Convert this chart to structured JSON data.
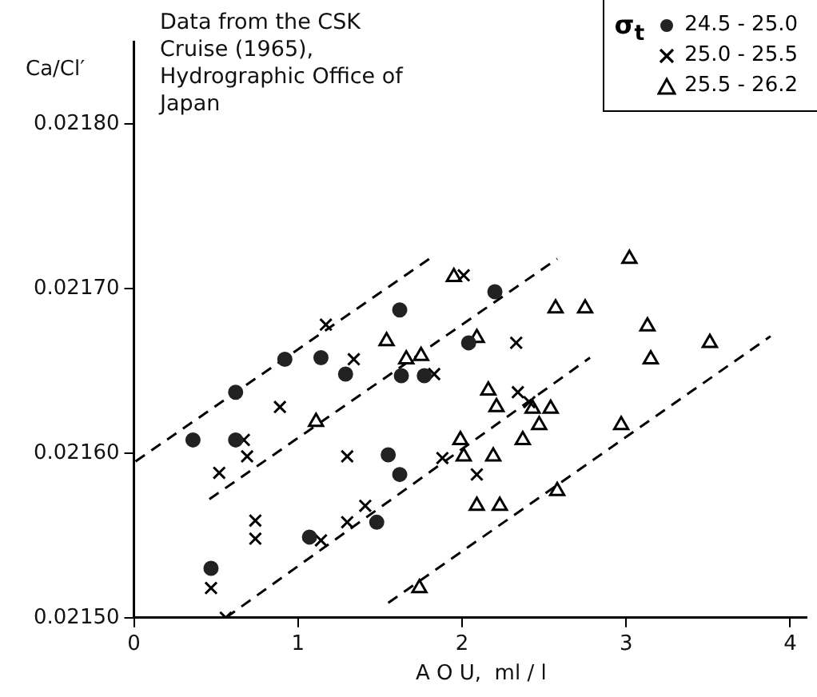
{
  "chart_data": {
    "type": "scatter",
    "xlabel": "A O U,  ml / l",
    "ylabel": "Ca/Cl′",
    "legend_title": "σ$_{t}$",
    "annotations": [
      "Data from the CSK Cruise (1965), Hydrographic Office of Japan"
    ],
    "xlim": [
      0,
      4.1
    ],
    "ylim": [
      0.0215,
      0.02185
    ],
    "xticks": [
      0,
      1,
      2,
      3,
      4
    ],
    "yticks": [
      {
        "value": 0.0215,
        "label": "0.02150"
      },
      {
        "value": 0.0216,
        "label": "0.02160"
      },
      {
        "value": 0.0217,
        "label": "0.02170"
      },
      {
        "value": 0.0218,
        "label": "0.02180"
      }
    ],
    "grid": false,
    "legend": "top right",
    "series": [
      {
        "name": "24.5 - 25.0",
        "color": "#222222",
        "marker": "circle",
        "x": [
          0.36,
          0.62,
          0.62,
          0.92,
          1.14,
          1.29,
          1.62,
          1.63,
          1.77,
          2.04,
          2.2,
          1.55,
          1.62,
          0.47,
          1.07,
          1.48
        ],
        "values": [
          0.021608,
          0.021637,
          0.021608,
          0.021657,
          0.021658,
          0.021648,
          0.021687,
          0.021647,
          0.021647,
          0.021667,
          0.021698,
          0.021599,
          0.021587,
          0.02153,
          0.021549,
          0.021558
        ]
      },
      {
        "name": "25.0 - 25.5",
        "color": "#000000",
        "marker": "cross",
        "x": [
          0.67,
          0.89,
          1.17,
          1.34,
          1.83,
          2.01,
          0.52,
          0.69,
          1.3,
          1.88,
          0.74,
          0.74,
          0.47,
          0.56,
          1.14,
          1.3,
          1.41,
          2.33,
          2.34,
          2.41,
          2.09
        ],
        "values": [
          0.021608,
          0.021628,
          0.021678,
          0.021657,
          0.021648,
          0.021708,
          0.021588,
          0.021598,
          0.021598,
          0.021597,
          0.021559,
          0.021548,
          0.021518,
          0.0215,
          0.021547,
          0.021558,
          0.021568,
          0.021667,
          0.021637,
          0.021631,
          0.021587
        ]
      },
      {
        "name": "25.5 - 26.2",
        "color": "#000000",
        "marker": "triangle",
        "x": [
          1.11,
          1.54,
          1.66,
          1.75,
          1.95,
          1.99,
          2.01,
          3.02,
          2.57,
          2.75,
          3.13,
          3.51,
          3.15,
          2.09,
          2.16,
          2.21,
          2.43,
          2.54,
          2.47,
          2.97,
          2.37,
          2.19,
          2.09,
          2.23,
          2.58,
          1.74
        ],
        "values": [
          0.021619,
          0.021668,
          0.021657,
          0.021659,
          0.021707,
          0.021608,
          0.021598,
          0.021718,
          0.021688,
          0.021688,
          0.021677,
          0.021667,
          0.021657,
          0.02167,
          0.021638,
          0.021628,
          0.021627,
          0.021627,
          0.021617,
          0.021617,
          0.021608,
          0.021598,
          0.021568,
          0.021568,
          0.021577,
          0.021518
        ]
      },
      {
        "type": "line",
        "color": "#000000",
        "marker": "none",
        "line_style": "dashed",
        "x": [
          0.01,
          1.8
        ],
        "values": [
          0.021595,
          0.021718
        ]
      },
      {
        "type": "line",
        "color": "#000000",
        "marker": "none",
        "line_style": "dashed",
        "x": [
          0.46,
          2.58
        ],
        "values": [
          0.021572,
          0.021718
        ]
      },
      {
        "type": "line",
        "color": "#000000",
        "marker": "none",
        "line_style": "dashed",
        "x": [
          0.56,
          2.78
        ],
        "values": [
          0.0215,
          0.021658
        ]
      },
      {
        "type": "line",
        "color": "#000000",
        "marker": "none",
        "line_style": "dashed",
        "x": [
          1.55,
          3.88
        ],
        "values": [
          0.021509,
          0.021671
        ]
      }
    ]
  }
}
